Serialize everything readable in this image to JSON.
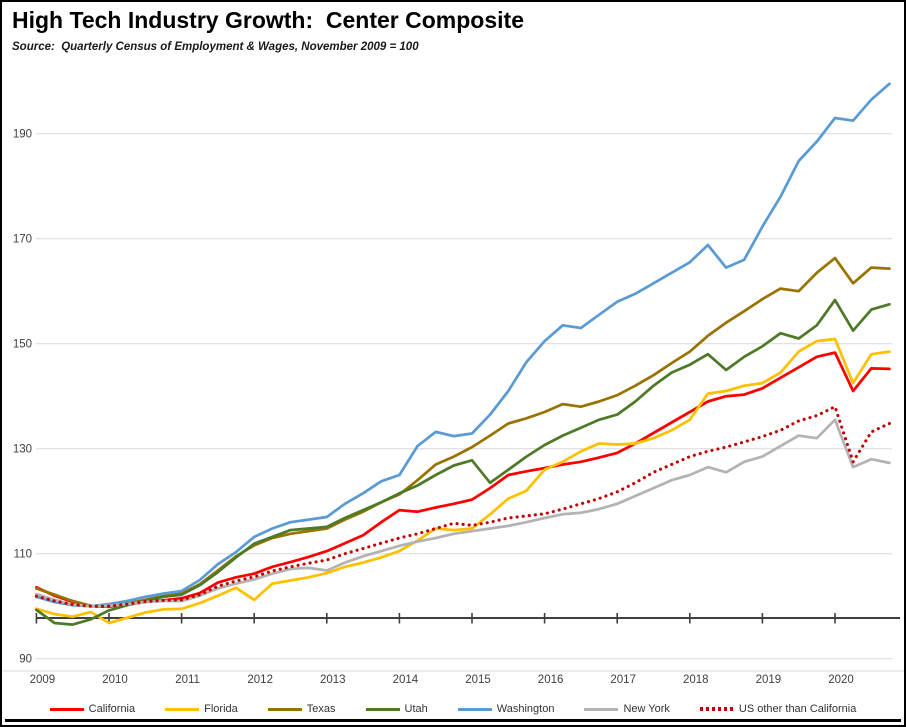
{
  "header": {
    "title": "High Tech Industry Growth:  Center Composite",
    "source_note": "Source:  Quarterly Census of Employment & Wages, November 2009 = 100"
  },
  "chart_data": {
    "type": "line",
    "title": "High Tech Industry Growth:  Center Composite",
    "subtitle": "Source:  Quarterly Census of Employment & Wages, November 2009 = 100",
    "xlabel": "",
    "ylabel": "",
    "index_base": "November 2009 = 100",
    "ylim": [
      90,
      200
    ],
    "yticks": [
      90,
      110,
      130,
      150,
      170,
      190
    ],
    "xticks": [
      2009,
      2010,
      2011,
      2012,
      2013,
      2014,
      2015,
      2016,
      2017,
      2018,
      2019,
      2020
    ],
    "grid": "horizontal",
    "gridline_color": "#D9D9D9",
    "axis_line_color": "#3f3f3f",
    "tick_label_color": "#404040",
    "legend_position": "bottom",
    "x": [
      2009.0,
      2009.25,
      2009.5,
      2009.75,
      2010.0,
      2010.25,
      2010.5,
      2010.75,
      2011.0,
      2011.25,
      2011.5,
      2011.75,
      2012.0,
      2012.25,
      2012.5,
      2012.75,
      2013.0,
      2013.25,
      2013.5,
      2013.75,
      2014.0,
      2014.25,
      2014.5,
      2014.75,
      2015.0,
      2015.25,
      2015.5,
      2015.75,
      2016.0,
      2016.25,
      2016.5,
      2016.75,
      2017.0,
      2017.25,
      2017.5,
      2017.75,
      2018.0,
      2018.25,
      2018.5,
      2018.75,
      2019.0,
      2019.25,
      2019.5,
      2019.75,
      2020.0,
      2020.25,
      2020.5,
      2020.75
    ],
    "series": [
      {
        "name": "California",
        "color": "#FF0000",
        "line_style": "solid",
        "values": [
          103.6,
          102.0,
          100.8,
          100.0,
          99.9,
          100.3,
          100.8,
          101.1,
          101.5,
          102.5,
          104.5,
          105.5,
          106.2,
          107.5,
          108.4,
          109.4,
          110.5,
          112.0,
          113.5,
          116.0,
          118.3,
          118.0,
          118.8,
          119.5,
          120.3,
          122.5,
          125.0,
          125.7,
          126.3,
          127.0,
          127.5,
          128.3,
          129.2,
          131.0,
          133.0,
          135.0,
          137.0,
          139.0,
          140.0,
          140.3,
          141.5,
          143.5,
          145.5,
          147.5,
          148.3,
          141.0,
          145.3,
          145.2
        ]
      },
      {
        "name": "Florida",
        "color": "#FFC000",
        "line_style": "solid",
        "values": [
          99.5,
          98.5,
          98.0,
          98.9,
          96.8,
          97.8,
          98.8,
          99.4,
          99.5,
          100.6,
          102.0,
          103.5,
          101.2,
          104.3,
          104.9,
          105.5,
          106.3,
          107.5,
          108.3,
          109.3,
          110.5,
          112.5,
          114.8,
          114.5,
          114.8,
          117.5,
          120.5,
          122.0,
          126.0,
          127.5,
          129.5,
          131.0,
          130.8,
          131.0,
          132.0,
          133.5,
          135.5,
          140.5,
          141.0,
          142.0,
          142.5,
          144.5,
          148.5,
          150.5,
          150.9,
          142.5,
          148.0,
          148.5
        ]
      },
      {
        "name": "Texas",
        "color": "#997300",
        "line_style": "solid",
        "values": [
          103.4,
          102.2,
          101.0,
          100.1,
          99.9,
          100.5,
          101.2,
          102.0,
          102.4,
          104.2,
          106.8,
          109.5,
          111.6,
          113.0,
          113.8,
          114.3,
          114.8,
          116.5,
          118.0,
          119.8,
          121.3,
          124.0,
          127.0,
          128.5,
          130.3,
          132.5,
          134.8,
          135.8,
          137.0,
          138.5,
          138.0,
          139.0,
          140.2,
          142.0,
          144.0,
          146.3,
          148.5,
          151.5,
          154.0,
          156.2,
          158.5,
          160.5,
          160.0,
          163.5,
          166.3,
          161.5,
          164.5,
          164.3
        ]
      },
      {
        "name": "Utah",
        "color": "#4E7A27",
        "line_style": "solid",
        "values": [
          99.3,
          96.8,
          96.5,
          97.5,
          99.2,
          100.2,
          101.0,
          101.8,
          102.2,
          104.0,
          106.5,
          109.3,
          111.9,
          113.2,
          114.5,
          114.8,
          115.1,
          116.8,
          118.3,
          119.8,
          121.5,
          123.0,
          125.0,
          126.8,
          127.8,
          123.5,
          126.0,
          128.5,
          130.7,
          132.5,
          134.0,
          135.5,
          136.5,
          139.0,
          142.0,
          144.5,
          146.0,
          148.0,
          145.0,
          147.5,
          149.5,
          152.0,
          151.0,
          153.5,
          158.3,
          152.5,
          156.5,
          157.5
        ]
      },
      {
        "name": "Washington",
        "color": "#5B9BD5",
        "line_style": "solid",
        "values": [
          101.8,
          100.8,
          100.2,
          100.0,
          100.4,
          101.0,
          101.8,
          102.4,
          102.9,
          105.0,
          108.0,
          110.3,
          113.2,
          114.8,
          116.0,
          116.5,
          117.0,
          119.5,
          121.5,
          123.8,
          125.0,
          130.5,
          133.2,
          132.4,
          132.9,
          136.5,
          141.0,
          146.5,
          150.5,
          153.5,
          153.0,
          155.5,
          158.0,
          159.5,
          161.5,
          163.5,
          165.5,
          168.8,
          164.5,
          166.0,
          172.3,
          178.0,
          184.8,
          188.5,
          193.0,
          192.5,
          196.5,
          199.5
        ]
      },
      {
        "name": "New York",
        "color": "#B3B3B3",
        "line_style": "solid",
        "values": [
          102.3,
          101.2,
          100.3,
          100.0,
          100.1,
          100.4,
          100.8,
          101.0,
          101.0,
          102.0,
          103.4,
          104.3,
          105.1,
          106.2,
          107.1,
          107.3,
          106.8,
          108.3,
          109.5,
          110.5,
          111.5,
          112.3,
          113.0,
          113.8,
          114.3,
          114.8,
          115.3,
          116.0,
          116.8,
          117.5,
          117.8,
          118.5,
          119.5,
          121.0,
          122.5,
          124.0,
          125.0,
          126.5,
          125.5,
          127.5,
          128.5,
          130.5,
          132.5,
          132.0,
          135.5,
          126.5,
          128.0,
          127.3
        ]
      },
      {
        "name": "US other than California",
        "color": "#C00000",
        "line_style": "dotted",
        "values": [
          101.9,
          101.0,
          100.3,
          100.0,
          100.0,
          100.4,
          100.9,
          101.1,
          101.2,
          102.2,
          103.8,
          104.8,
          105.6,
          106.7,
          107.5,
          108.2,
          108.8,
          110.0,
          111.0,
          112.0,
          113.0,
          113.8,
          114.8,
          115.8,
          115.4,
          116.0,
          116.8,
          117.2,
          117.6,
          118.5,
          119.5,
          120.5,
          121.8,
          123.5,
          125.5,
          127.0,
          128.5,
          129.5,
          130.3,
          131.3,
          132.3,
          133.5,
          135.3,
          136.3,
          138.0,
          127.5,
          133.2,
          134.8
        ]
      }
    ]
  }
}
